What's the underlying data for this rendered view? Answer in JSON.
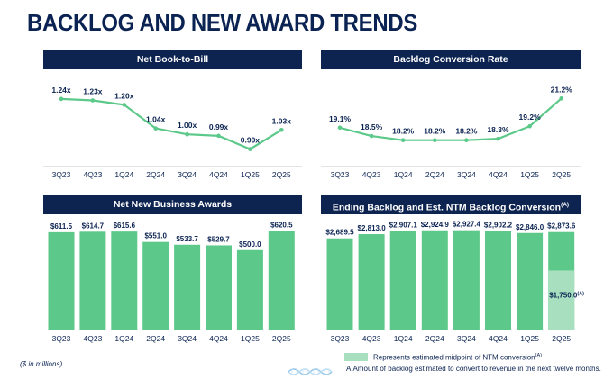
{
  "title": "BACKLOG AND NEW AWARD TRENDS",
  "panels": {
    "book_to_bill": {
      "header": "Net Book-to-Bill"
    },
    "conversion": {
      "header": "Backlog Conversion Rate"
    },
    "awards": {
      "header": "Net New Business Awards"
    },
    "backlog": {
      "header": "Ending Backlog and Est. NTM Backlog Conversion",
      "header_sup": "(A)"
    }
  },
  "footer": {
    "units": "($ in millions)",
    "legend_label": "Represents estimated midpoint of NTM conversion",
    "legend_sup": "(A)",
    "note_a": "A.Amount of backlog estimated to convert to revenue in the next twelve months."
  },
  "colors": {
    "navy": "#0d2350",
    "green": "#5cc98a",
    "light_green": "#a8e0bf",
    "axis_text": "#0b2352"
  },
  "chart_data": [
    {
      "id": "book_to_bill",
      "type": "line",
      "title": "Net Book-to-Bill",
      "categories": [
        "3Q23",
        "4Q23",
        "1Q24",
        "2Q24",
        "3Q24",
        "4Q24",
        "1Q25",
        "2Q25"
      ],
      "values": [
        1.24,
        1.23,
        1.2,
        1.04,
        1.0,
        0.99,
        0.9,
        1.03
      ],
      "labels": [
        "1.24x",
        "1.23x",
        "1.20x",
        "1.04x",
        "1.00x",
        "0.99x",
        "0.90x",
        "1.03x"
      ],
      "ylim": [
        0.8,
        1.3
      ]
    },
    {
      "id": "conversion",
      "type": "line",
      "title": "Backlog Conversion Rate",
      "categories": [
        "3Q23",
        "4Q23",
        "1Q24",
        "2Q24",
        "3Q24",
        "4Q24",
        "1Q25",
        "2Q25"
      ],
      "values": [
        19.1,
        18.5,
        18.2,
        18.2,
        18.2,
        18.3,
        19.2,
        21.2
      ],
      "labels": [
        "19.1%",
        "18.5%",
        "18.2%",
        "18.2%",
        "18.2%",
        "18.3%",
        "19.2%",
        "21.2%"
      ],
      "ylim": [
        16.5,
        21.8
      ]
    },
    {
      "id": "awards",
      "type": "bar",
      "title": "Net New Business Awards",
      "categories": [
        "3Q23",
        "4Q23",
        "1Q24",
        "2Q24",
        "3Q24",
        "4Q24",
        "1Q25",
        "2Q25"
      ],
      "values": [
        611.5,
        614.7,
        615.6,
        551.0,
        533.7,
        529.7,
        500.0,
        620.5
      ],
      "labels": [
        "$611.5",
        "$614.7",
        "$615.6",
        "$551.0",
        "$533.7",
        "$529.7",
        "$500.0",
        "$620.5"
      ],
      "ylim": [
        0,
        650
      ]
    },
    {
      "id": "backlog",
      "type": "bar",
      "title": "Ending Backlog and Est. NTM Backlog Conversion",
      "categories": [
        "3Q23",
        "4Q23",
        "1Q24",
        "2Q24",
        "3Q24",
        "4Q24",
        "1Q25",
        "2Q25"
      ],
      "values": [
        2689.5,
        2813.0,
        2907.1,
        2924.9,
        2927.4,
        2902.2,
        2846.0,
        2873.6
      ],
      "labels": [
        "$2,689.5",
        "$2,813.0",
        "$2,907.1",
        "$2,924.9",
        "$2,927.4",
        "$2,902.2",
        "$2,846.0",
        "$2,873.6"
      ],
      "ylim": [
        0,
        3050
      ],
      "overlay": {
        "index": 7,
        "value": 1750.0,
        "label": "$1,750.0",
        "label_sup": "(A)"
      }
    }
  ]
}
